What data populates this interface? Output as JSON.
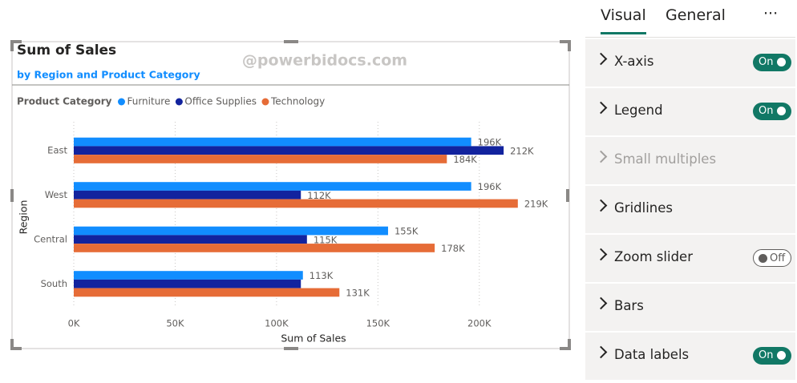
{
  "watermark": "@powerbidocs.com",
  "chart_data": {
    "type": "bar",
    "orientation": "horizontal",
    "title": "Sum of Sales",
    "subtitle": "by Region and Product Category",
    "legend_title": "Product Category",
    "x_label": "Sum of Sales",
    "y_label": "Region",
    "categories": [
      "East",
      "West",
      "Central",
      "South"
    ],
    "series": [
      {
        "name": "Furniture",
        "color": "#118dff",
        "values": [
          196000,
          196000,
          155000,
          113000
        ],
        "value_labels": [
          "196K",
          "196K",
          "155K",
          "113K"
        ]
      },
      {
        "name": "Office Supplies",
        "color": "#12239e",
        "values": [
          212000,
          112000,
          115000,
          112000
        ],
        "value_labels": [
          "212K",
          "112K",
          "115K",
          null
        ]
      },
      {
        "name": "Technology",
        "color": "#e66c37",
        "values": [
          184000,
          219000,
          178000,
          131000
        ],
        "value_labels": [
          "184K",
          "219K",
          "178K",
          "131K"
        ]
      }
    ],
    "xlim": [
      0,
      225000
    ],
    "xticks": [
      {
        "value": 0,
        "label": "0K"
      },
      {
        "value": 50000,
        "label": "50K"
      },
      {
        "value": 100000,
        "label": "100K"
      },
      {
        "value": 150000,
        "label": "150K"
      },
      {
        "value": 200000,
        "label": "200K"
      }
    ],
    "grid": true,
    "legend_position": "top-left"
  },
  "pane": {
    "tabs": [
      "Visual",
      "General"
    ],
    "active_tab": 0,
    "menu": "···",
    "sections": [
      {
        "label": "X-axis",
        "toggle": "On",
        "enabled": true
      },
      {
        "label": "Legend",
        "toggle": "On",
        "enabled": true
      },
      {
        "label": "Small multiples",
        "toggle": null,
        "enabled": false
      },
      {
        "label": "Gridlines",
        "toggle": null,
        "enabled": true
      },
      {
        "label": "Zoom slider",
        "toggle": "Off",
        "enabled": true
      },
      {
        "label": "Bars",
        "toggle": null,
        "enabled": true
      },
      {
        "label": "Data labels",
        "toggle": "On",
        "enabled": true
      }
    ]
  }
}
